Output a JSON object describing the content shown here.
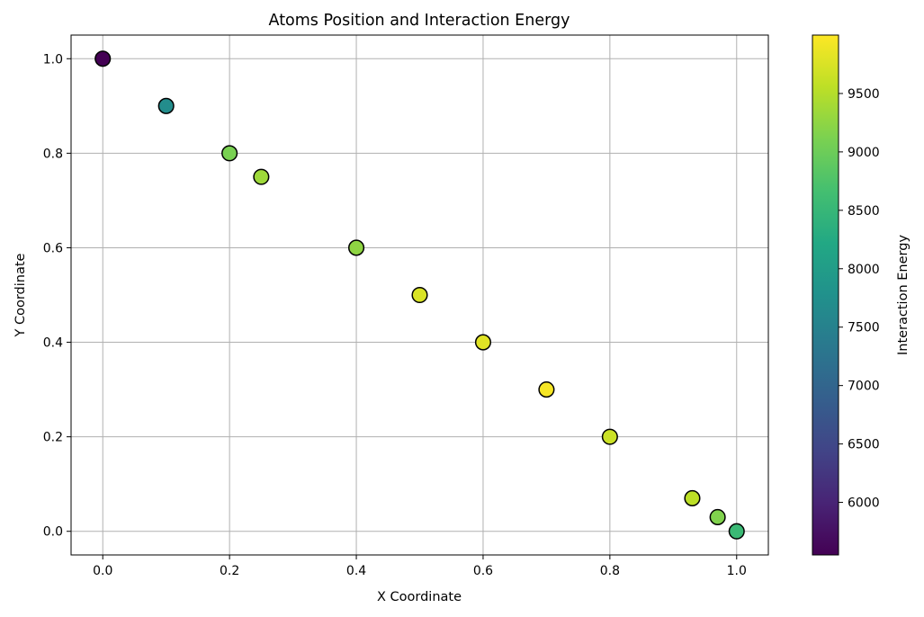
{
  "chart_data": {
    "type": "scatter",
    "title": "Atoms Position and Interaction Energy",
    "xlabel": "X Coordinate",
    "ylabel": "Y Coordinate",
    "xlim": [
      -0.05,
      1.05
    ],
    "ylim": [
      -0.05,
      1.05
    ],
    "xticks": [
      0.0,
      0.2,
      0.4,
      0.6,
      0.8,
      1.0
    ],
    "xtick_labels": [
      "0.0",
      "0.2",
      "0.4",
      "0.6",
      "0.8",
      "1.0"
    ],
    "yticks": [
      0.0,
      0.2,
      0.4,
      0.6,
      0.8,
      1.0
    ],
    "ytick_labels": [
      "0.0",
      "0.2",
      "0.4",
      "0.6",
      "0.8",
      "1.0"
    ],
    "grid": true,
    "colormap": "viridis",
    "colorbar": {
      "label": "Interaction Energy",
      "range": [
        5550,
        10000
      ],
      "ticks": [
        6000,
        6500,
        7000,
        7500,
        8000,
        8500,
        9000,
        9500
      ],
      "tick_labels": [
        "6000",
        "6500",
        "7000",
        "7500",
        "8000",
        "8500",
        "9000",
        "9500"
      ]
    },
    "points": [
      {
        "x": 0.0,
        "y": 1.0,
        "energy": 5550
      },
      {
        "x": 0.1,
        "y": 0.9,
        "energy": 7700
      },
      {
        "x": 0.2,
        "y": 0.8,
        "energy": 9100
      },
      {
        "x": 0.25,
        "y": 0.75,
        "energy": 9350
      },
      {
        "x": 0.4,
        "y": 0.6,
        "energy": 9250
      },
      {
        "x": 0.5,
        "y": 0.5,
        "energy": 9750
      },
      {
        "x": 0.6,
        "y": 0.4,
        "energy": 9800
      },
      {
        "x": 0.7,
        "y": 0.3,
        "energy": 9950
      },
      {
        "x": 0.8,
        "y": 0.2,
        "energy": 9650
      },
      {
        "x": 0.93,
        "y": 0.07,
        "energy": 9550
      },
      {
        "x": 0.97,
        "y": 0.03,
        "energy": 9150
      },
      {
        "x": 1.0,
        "y": 0.0,
        "energy": 8550
      }
    ],
    "colors": {
      "marker_edge": "#000000",
      "grid": "#b0b0b0",
      "axes": "#000000"
    }
  }
}
